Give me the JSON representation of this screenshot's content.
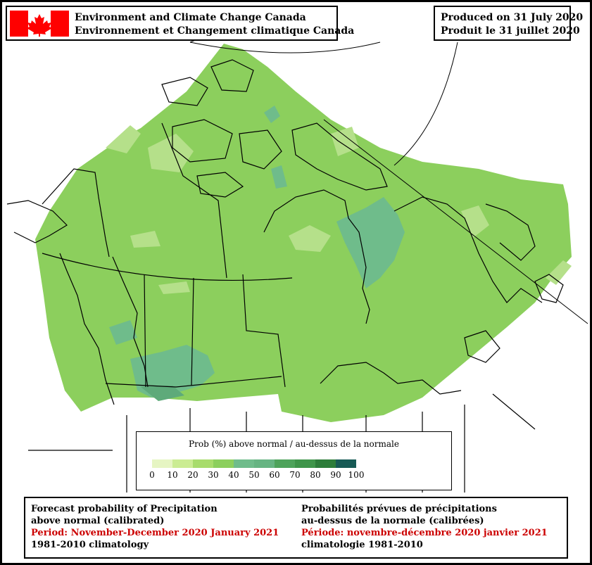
{
  "header": {
    "agency_en": "Environment and Climate Change Canada",
    "agency_fr": "Environnement et Changement climatique Canada",
    "produced_en": "Produced on 31 July 2020",
    "produced_fr": "Produit le 31 juillet 2020"
  },
  "legend": {
    "title": "Prob (%) above normal / au-dessus de la normale",
    "ticks": [
      "0",
      "10",
      "20",
      "30",
      "40",
      "50",
      "60",
      "70",
      "80",
      "90",
      "100"
    ],
    "colors": [
      "#e6f5c3",
      "#cbec93",
      "#a8dc6c",
      "#8ccf5d",
      "#6fbc8b",
      "#66b482",
      "#4ea35b",
      "#3f954a",
      "#2d7d3a",
      "#175a55"
    ]
  },
  "caption": {
    "en_line1": "Forecast probability of Precipitation",
    "en_line2": "above normal (calibrated)",
    "en_period": "Period: November-December 2020 January 2021",
    "en_clim": "1981-2010 climatology",
    "fr_line1": "Probabilités prévues de précipitations",
    "fr_line2": "au-dessus de la normale (calibrées)",
    "fr_period": "Période: novembre-décembre 2020 janvier 2021",
    "fr_clim": "climatologie 1981-2010"
  },
  "colors": {
    "flag_red": "#ff0000",
    "period_red": "#cc0000",
    "base_green": "#8ccf5d",
    "light_green": "#b5e08a",
    "teal": "#6fbc8b",
    "dark_teal": "#5eaa7a"
  }
}
